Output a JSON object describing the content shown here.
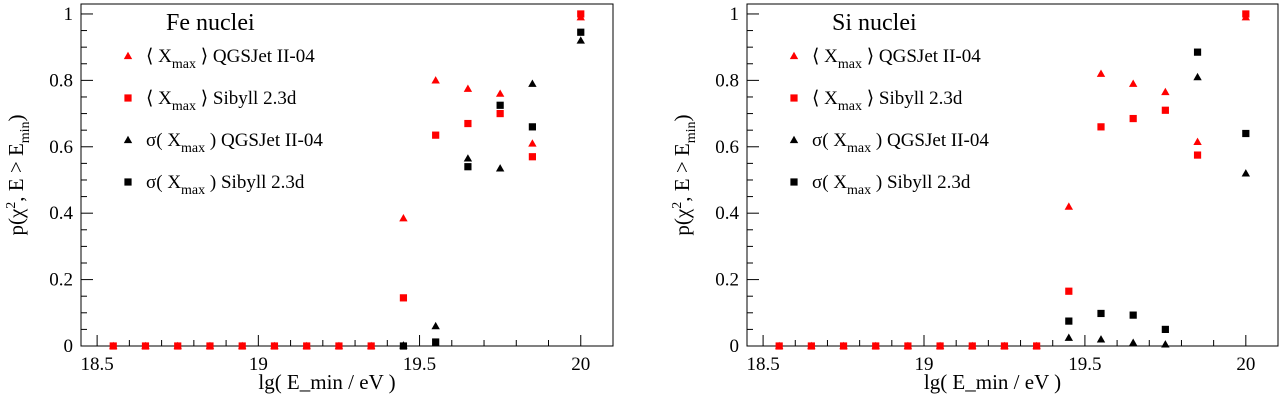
{
  "chart_data": [
    {
      "type": "scatter",
      "title": "Fe nuclei",
      "xlabel": "lg( E_min / eV )",
      "ylabel": "p(χ², E > E_min)",
      "xlim": [
        18.45,
        20.1
      ],
      "ylim": [
        0,
        1.03
      ],
      "xticks": [
        "18.5",
        "19",
        "19.5",
        "20"
      ],
      "yticks": [
        "0",
        "0.2",
        "0.4",
        "0.6",
        "0.8",
        "1"
      ],
      "grid": false,
      "legend": "top-left",
      "series": [
        {
          "name": "⟨ X_max ⟩ QGSJet II-04",
          "marker": "triangle",
          "color": "#ff0000",
          "x": [
            18.55,
            18.65,
            18.75,
            18.85,
            18.95,
            19.05,
            19.15,
            19.25,
            19.35,
            19.45,
            19.55,
            19.65,
            19.75,
            19.85,
            20.0
          ],
          "y": [
            0,
            0,
            0,
            0,
            0,
            0,
            0,
            0,
            0,
            0.385,
            0.8,
            0.775,
            0.76,
            0.61,
            0.99
          ]
        },
        {
          "name": "⟨ X_max ⟩ Sibyll 2.3d",
          "marker": "square",
          "color": "#ff0000",
          "x": [
            18.55,
            18.65,
            18.75,
            18.85,
            18.95,
            19.05,
            19.15,
            19.25,
            19.35,
            19.45,
            19.55,
            19.65,
            19.75,
            19.85,
            20.0
          ],
          "y": [
            0,
            0,
            0,
            0,
            0,
            0,
            0,
            0,
            0,
            0.145,
            0.635,
            0.67,
            0.7,
            0.57,
            1.0
          ]
        },
        {
          "name": "σ( X_max ) QGSJet II-04",
          "marker": "triangle",
          "color": "#000000",
          "x": [
            19.45,
            19.55,
            19.65,
            19.75,
            19.85,
            20.0
          ],
          "y": [
            0.002,
            0.06,
            0.565,
            0.535,
            0.79,
            0.92
          ]
        },
        {
          "name": "σ( X_max ) Sibyll 2.3d",
          "marker": "square",
          "color": "#000000",
          "x": [
            19.45,
            19.55,
            19.65,
            19.75,
            19.85,
            20.0
          ],
          "y": [
            0.0,
            0.012,
            0.54,
            0.725,
            0.66,
            0.945
          ]
        }
      ]
    },
    {
      "type": "scatter",
      "title": "Si nuclei",
      "xlabel": "lg( E_min / eV )",
      "ylabel": "p(χ², E > E_min)",
      "xlim": [
        18.45,
        20.1
      ],
      "ylim": [
        0,
        1.03
      ],
      "xticks": [
        "18.5",
        "19",
        "19.5",
        "20"
      ],
      "yticks": [
        "0",
        "0.2",
        "0.4",
        "0.6",
        "0.8",
        "1"
      ],
      "grid": false,
      "legend": "top-left",
      "series": [
        {
          "name": "⟨ X_max ⟩ QGSJet II-04",
          "marker": "triangle",
          "color": "#ff0000",
          "x": [
            18.55,
            18.65,
            18.75,
            18.85,
            18.95,
            19.05,
            19.15,
            19.25,
            19.35,
            19.45,
            19.55,
            19.65,
            19.75,
            19.85,
            20.0
          ],
          "y": [
            0,
            0,
            0,
            0,
            0,
            0,
            0,
            0,
            0,
            0.42,
            0.82,
            0.79,
            0.765,
            0.615,
            0.99
          ]
        },
        {
          "name": "⟨ X_max ⟩ Sibyll 2.3d",
          "marker": "square",
          "color": "#ff0000",
          "x": [
            18.55,
            18.65,
            18.75,
            18.85,
            18.95,
            19.05,
            19.15,
            19.25,
            19.35,
            19.45,
            19.55,
            19.65,
            19.75,
            19.85,
            20.0
          ],
          "y": [
            0,
            0,
            0,
            0,
            0,
            0,
            0,
            0,
            0,
            0.165,
            0.66,
            0.685,
            0.71,
            0.575,
            1.0
          ]
        },
        {
          "name": "σ( X_max ) QGSJet II-04",
          "marker": "triangle",
          "color": "#000000",
          "x": [
            19.45,
            19.55,
            19.65,
            19.75,
            19.85,
            20.0
          ],
          "y": [
            0.025,
            0.02,
            0.01,
            0.005,
            0.81,
            0.52
          ]
        },
        {
          "name": "σ( X_max ) Sibyll 2.3d",
          "marker": "square",
          "color": "#000000",
          "x": [
            19.45,
            19.55,
            19.65,
            19.75,
            19.85,
            20.0
          ],
          "y": [
            0.075,
            0.098,
            0.093,
            0.05,
            0.885,
            0.64
          ]
        }
      ]
    }
  ]
}
